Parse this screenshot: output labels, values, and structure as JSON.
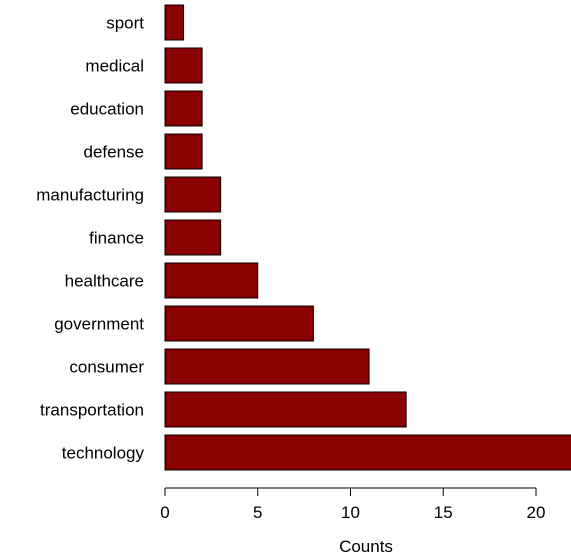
{
  "chart_data": {
    "type": "bar",
    "orientation": "horizontal",
    "categories": [
      "sport",
      "medical",
      "education",
      "defense",
      "manufacturing",
      "finance",
      "healthcare",
      "government",
      "consumer",
      "transportation",
      "technology"
    ],
    "values": [
      1,
      2,
      2,
      2,
      3,
      3,
      5,
      8,
      11,
      13,
      22
    ],
    "title": "",
    "xlabel": "Counts",
    "ylabel": "",
    "xlim": [
      0,
      22
    ],
    "x_ticks": [
      0,
      5,
      10,
      15,
      20
    ],
    "x_tick_labels": [
      "0",
      "5",
      "10",
      "15",
      "20"
    ],
    "grid": false,
    "legend": "none",
    "bar_color": "#8b0000",
    "bar_edge_color": "#000000"
  }
}
